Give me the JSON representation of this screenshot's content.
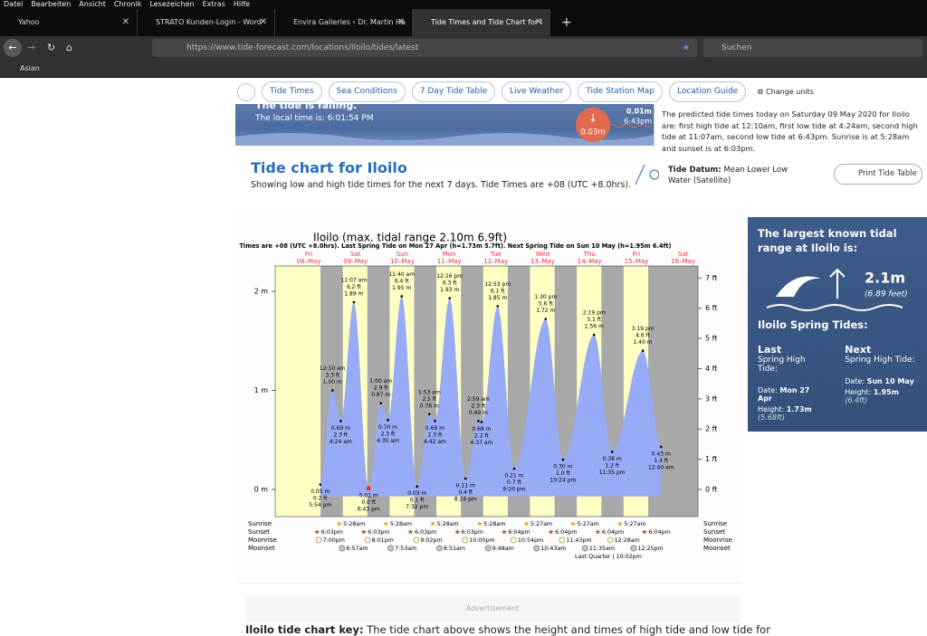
{
  "menu": [
    "Datei",
    "Bearbeiten",
    "Ansicht",
    "Chronik",
    "Lesezeichen",
    "Extras",
    "Hilfe"
  ],
  "tabs": [
    "Yahoo",
    "STRATO Kunden-Login - Word",
    "Envira Galleries ‹ Dr. Martin Ha",
    "Tide Times and Tide Chart for I"
  ],
  "url": "https://www.tide-forecast.com/locations/Iloilo/tides/latest",
  "search_placeholder": "Suchen",
  "bookmarks": [
    "Asian"
  ],
  "site_nav": [
    "Tide Times",
    "Sea Conditions",
    "7 Day Tide Table",
    "Live Weather",
    "Tide Station Map",
    "Location Guide"
  ],
  "change_units": "Change units",
  "banner": {
    "status": "The tide is falling.",
    "local_time": "The local time is: 6:01:54 PM",
    "current": "0.03m",
    "next_height": "0.01m",
    "next_time": "6:43pm",
    "summary": "The predicted tide times today on Saturday 09 May 2020 for Iloilo are: first high tide at 12:10am, first low tide at 4:24am, second high tide at 11:07am, second low tide at 6:43pm. Sunrise is at 5:28am and sunset is at 6:03pm."
  },
  "heading": {
    "title": "Tide chart for Iloilo",
    "subtitle": "Showing low and high tide times for the next 7 days. Tide Times are +08 (UTC +8.0hrs)."
  },
  "tide_datum": {
    "label": "Tide Datum:",
    "text": "Mean Lower Low Water (Satellite)"
  },
  "print_button": "Print Tide Table",
  "tide_chart": {
    "title": "Iloilo (max. tidal range 2.10m 6.9ft)",
    "subtitle": "Times are +08 (UTC +8.0hrs). Last Spring Tide on Mon 27 Apr (h=1.73m 5.7ft). Next Spring Tide on Sun 10 May (h=1.95m 6.4ft)",
    "days": [
      {
        "dow": "Fri",
        "date": "08–May"
      },
      {
        "dow": "Sat",
        "date": "09–May"
      },
      {
        "dow": "Sun",
        "date": "10–May"
      },
      {
        "dow": "Mon",
        "date": "11–May"
      },
      {
        "dow": "Tue",
        "date": "12–May"
      },
      {
        "dow": "Wed",
        "date": "13–May"
      },
      {
        "dow": "Thu",
        "date": "14–May"
      },
      {
        "dow": "Fri",
        "date": "15–May"
      },
      {
        "dow": "Sat",
        "date": "16–May"
      }
    ],
    "yticks_m": [
      {
        "value": 0,
        "label": "0 m"
      },
      {
        "value": 1,
        "label": "1 m"
      },
      {
        "value": 2,
        "label": "2 m"
      }
    ],
    "yticks_ft": [
      {
        "value": 0,
        "label": "0 ft"
      },
      {
        "value": 1,
        "label": "1 ft"
      },
      {
        "value": 2,
        "label": "2 ft"
      },
      {
        "value": 3,
        "label": "3 ft"
      },
      {
        "value": 4,
        "label": "4 ft"
      },
      {
        "value": 5,
        "label": "5 ft"
      },
      {
        "value": 6,
        "label": "6 ft"
      },
      {
        "value": 7,
        "label": "7 ft"
      }
    ],
    "background_color": "#ffffc4",
    "night_color": "#a8a8a8",
    "water_color": "#97abf7",
    "tides": [
      {
        "time": "5:54 pm",
        "height": 0.05,
        "label_m": "0.05 m",
        "label_ft": "0.2 ft"
      },
      {
        "time": "12:10 am",
        "height": 1.0,
        "label_m": "1.00 m",
        "label_ft": "3.3 ft"
      },
      {
        "time": "4:24 am",
        "height": 0.69,
        "label_m": "0.69 m",
        "label_ft": "2.3 ft"
      },
      {
        "time": "11:07 am",
        "height": 1.89,
        "label_m": "1.89 m",
        "label_ft": "6.2 ft"
      },
      {
        "time": "6:43 pm",
        "height": 0.01,
        "label_m": "0.01 m",
        "label_ft": "0.0 ft",
        "highlight_color": "#e8322b"
      },
      {
        "time": "1:00 am",
        "height": 0.87,
        "label_m": "0.87 m",
        "label_ft": "2.9 ft"
      },
      {
        "time": "4:35 am",
        "height": 0.7,
        "label_m": "0.70 m",
        "label_ft": "2.3 ft"
      },
      {
        "time": "11:40 am",
        "height": 1.95,
        "label_m": "1.95 m",
        "label_ft": "6.4 ft"
      },
      {
        "time": "7:32 pm",
        "height": 0.03,
        "label_m": "0.03 m",
        "label_ft": "0.1 ft"
      },
      {
        "time": "1:53 am",
        "height": 0.76,
        "label_m": "0.76 m",
        "label_ft": "2.5 ft"
      },
      {
        "time": "4:42 am",
        "height": 0.69,
        "label_m": "0.69 m",
        "label_ft": "2.3 ft"
      },
      {
        "time": "12:16 pm",
        "height": 1.93,
        "label_m": "1.93 m",
        "label_ft": "6.3 ft"
      },
      {
        "time": "8:24 pm",
        "height": 0.11,
        "label_m": "0.11 m",
        "label_ft": "0.4 ft"
      },
      {
        "time": "2:59 am",
        "height": 0.69,
        "label_m": "0.69 m",
        "label_ft": "2.3 ft"
      },
      {
        "time": "4:37 am",
        "height": 0.68,
        "label_m": "0.68 m",
        "label_ft": "2.2 ft"
      },
      {
        "time": "12:53 pm",
        "height": 1.85,
        "label_m": "1.85 m",
        "label_ft": "6.1 ft"
      },
      {
        "time": "9:20 pm",
        "height": 0.21,
        "label_m": "0.21 m",
        "label_ft": "0.7 ft"
      },
      {
        "time": "1:30 pm",
        "height": 1.72,
        "label_m": "1.72 m",
        "label_ft": "5.6 ft"
      },
      {
        "time": "10:24 pm",
        "height": 0.3,
        "label_m": "0.30 m",
        "label_ft": "1.0 ft"
      },
      {
        "time": "2:19 pm",
        "height": 1.56,
        "label_m": "1.56 m",
        "label_ft": "5.1 ft"
      },
      {
        "time": "11:35 pm",
        "height": 0.38,
        "label_m": "0.38 m",
        "label_ft": "1.2 ft"
      },
      {
        "time": "3:19 pm",
        "height": 1.4,
        "label_m": "1.40 m",
        "label_ft": "4.6 ft"
      },
      {
        "time": "12:40 am",
        "height": 0.43,
        "label_m": "0.43 m",
        "label_ft": "1.4 ft"
      }
    ],
    "row_labels": [
      "Sunrise",
      "Sunset",
      "Moonrise",
      "Moonset"
    ],
    "sunrise": [
      "5:28am",
      "5:28am",
      "5:28am",
      "5:28am",
      "5:27am",
      "5:27am",
      "5:27am"
    ],
    "sunset": [
      "6:03pm",
      "6:03pm",
      "6:03pm",
      "6:03pm",
      "6:04pm",
      "6:04pm",
      "6:04pm",
      "6:04pm"
    ],
    "moonrise": [
      "7:00pm",
      "8:01pm",
      "9:02pm",
      "10:00pm",
      "10:54pm",
      "11:43pm",
      "12:28am"
    ],
    "moonset": [
      "6:57am",
      "7:53am",
      "8:51am",
      "9:48am",
      "10:43am",
      "11:35am",
      "12:25pm"
    ],
    "moon_phase": "Last Quarter | 10:02pm"
  },
  "sidebar": {
    "range_title": "The largest known tidal range at Iloilo is:",
    "range_m": "2.1m",
    "range_ft": "(6.89 feet)",
    "spring_title": "Iloilo Spring Tides:",
    "last": {
      "heading": "Last",
      "sub": "Spring High Tide:",
      "date_label": "Date:",
      "date": "Mon 27 Apr",
      "height_label": "Height:",
      "height": "1.73m",
      "height_ft": "(5.68ft)"
    },
    "next": {
      "heading": "Next",
      "sub": "Spring High Tide:",
      "date_label": "Date:",
      "date": "Sun 10 May",
      "height_label": "Height:",
      "height": "1.95m",
      "height_ft": "(6.4ft)"
    }
  },
  "advertisement": "Advertisement",
  "key": {
    "label": "Iloilo tide chart key:",
    "text": "The tide chart above shows the height and times of high tide and low tide for"
  }
}
